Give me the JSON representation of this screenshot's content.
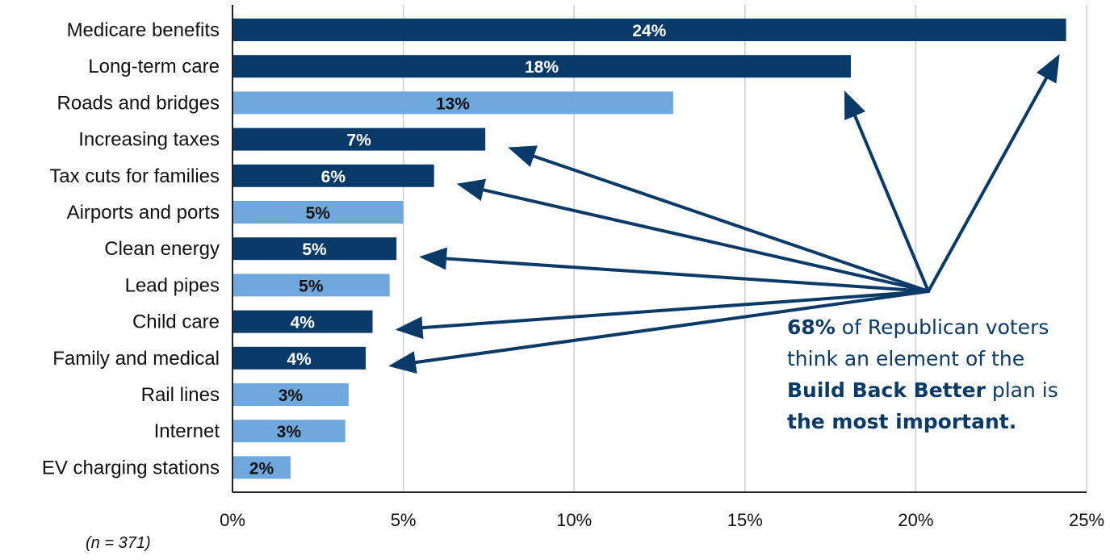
{
  "chart_data": {
    "type": "bar",
    "orientation": "horizontal",
    "categories": [
      "Medicare benefits",
      "Long-term care",
      "Roads and bridges",
      "Increasing taxes",
      "Tax cuts for families",
      "Airports and ports",
      "Clean energy",
      "Lead pipes",
      "Child care",
      "Family and medical",
      "Rail lines",
      "Internet",
      "EV charging stations"
    ],
    "values": [
      24.4,
      18.1,
      12.9,
      7.4,
      5.9,
      5.0,
      4.8,
      4.6,
      4.1,
      3.9,
      3.4,
      3.3,
      1.7
    ],
    "value_labels": [
      "24%",
      "18%",
      "13%",
      "7%",
      "6%",
      "5%",
      "5%",
      "5%",
      "4%",
      "4%",
      "3%",
      "3%",
      "2%"
    ],
    "highlighted_in_annotation": [
      true,
      true,
      false,
      true,
      true,
      false,
      true,
      false,
      true,
      true,
      false,
      false,
      false
    ],
    "xlim": [
      0,
      25
    ],
    "x_ticks": [
      0,
      5,
      10,
      15,
      20,
      25
    ],
    "x_tick_labels": [
      "0%",
      "5%",
      "10%",
      "15%",
      "20%",
      "25%"
    ],
    "grid": "vertical",
    "colors": {
      "highlighted": "#0a3a67",
      "other": "#6fa8dc",
      "highlighted_label": "#ffffff",
      "other_label": "#111111",
      "arrow": "#0a3a67",
      "grid": "#cccccc"
    },
    "title": "",
    "xlabel": "",
    "ylabel": ""
  },
  "note": "(n = 371)",
  "annotation": {
    "pct": "68%",
    "text_1": " of Republican voters think an element of the ",
    "plan_name": "Build Back Better",
    "text_2": " plan is ",
    "emphasis": "the most important."
  }
}
